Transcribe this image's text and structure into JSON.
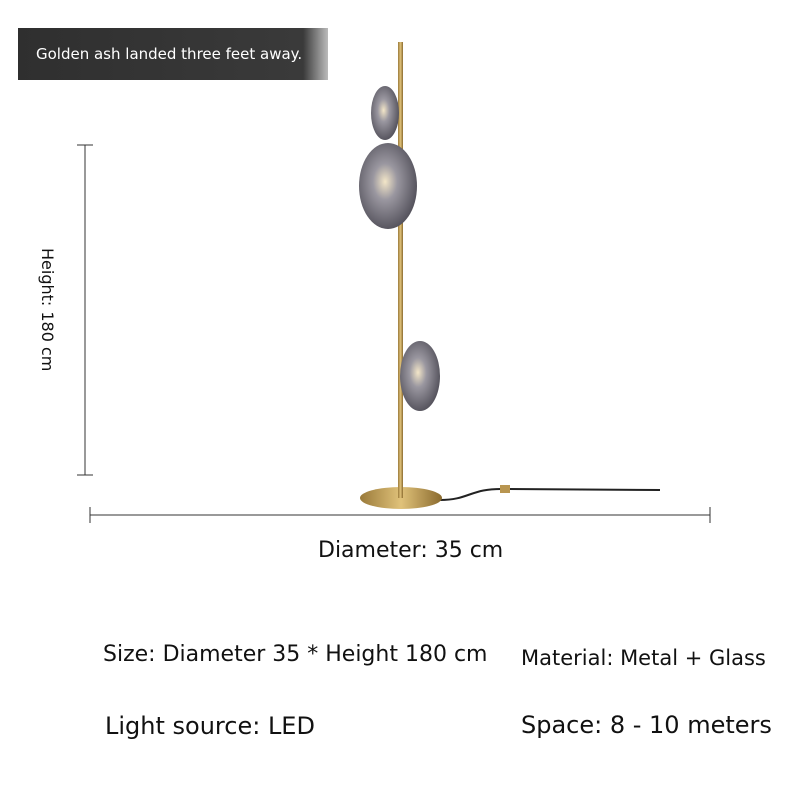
{
  "caption": "Golden ash landed three feet away.",
  "dimensions": {
    "height": "Height: 180 cm",
    "diameter": "Diameter: 35 cm"
  },
  "specs": {
    "size": "Size: Diameter 35 * Height 180 cm",
    "material": "Material: Metal + Glass",
    "light_source": "Light source: LED",
    "space": "Space: 8 - 10 meters"
  }
}
